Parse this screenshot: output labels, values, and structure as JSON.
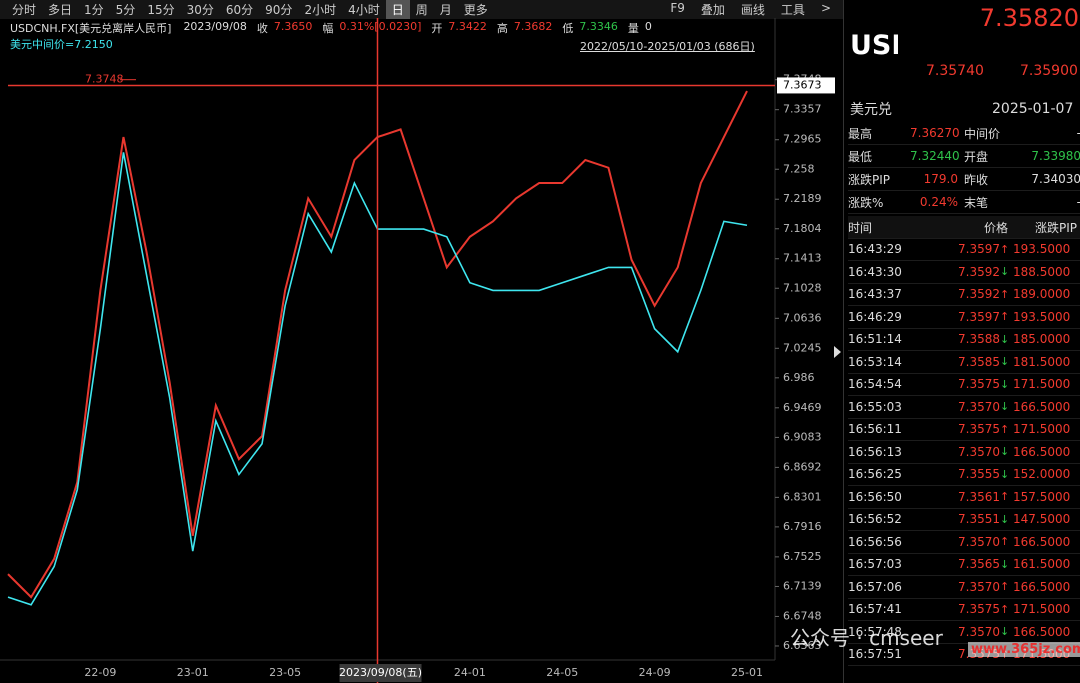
{
  "toolbar": {
    "periods": [
      "分时",
      "多日",
      "1分",
      "5分",
      "15分",
      "30分",
      "60分",
      "90分",
      "2小时",
      "4小时",
      "日",
      "周",
      "月",
      "更多"
    ],
    "selected": 10,
    "tools": [
      "F9",
      "叠加",
      "画线",
      "工具",
      ">"
    ]
  },
  "info": {
    "symbol": "USDCNH.FX[美元兑离岸人民币]",
    "date": "2023/09/08",
    "fields": [
      {
        "label": "收",
        "value": "7.3650",
        "color": "#f23a2f"
      },
      {
        "label": "幅",
        "value": "0.31%[0.0230]",
        "color": "#f23a2f"
      },
      {
        "label": "开",
        "value": "7.3422",
        "color": "#f23a2f"
      },
      {
        "label": "高",
        "value": "7.3682",
        "color": "#f23a2f"
      },
      {
        "label": "低",
        "value": "7.3346",
        "color": "#2fc24a"
      },
      {
        "label": "量",
        "value": "0",
        "color": "#dddddd"
      }
    ],
    "range": "2022/05/10-2025/01/03 (686日)"
  },
  "chart_data": {
    "type": "line",
    "categories": [
      null,
      null,
      null,
      null,
      "22-09",
      null,
      null,
      null,
      "23-01",
      null,
      null,
      null,
      "23-05",
      null,
      null,
      null,
      "2023/09/08(五)",
      null,
      null,
      null,
      "24-01",
      null,
      null,
      null,
      "24-05",
      null,
      null,
      null,
      "24-09",
      null,
      null,
      null,
      "25-01"
    ],
    "series": [
      {
        "color": "#e8382f",
        "values": [
          6.73,
          6.7,
          6.75,
          6.85,
          7.1,
          7.3,
          7.15,
          6.98,
          6.78,
          6.95,
          6.88,
          6.91,
          7.1,
          7.22,
          7.17,
          7.27,
          7.3,
          7.31,
          7.22,
          7.13,
          7.17,
          7.19,
          7.22,
          7.24,
          7.24,
          7.27,
          7.26,
          7.14,
          7.08,
          7.13,
          7.24,
          7.3,
          7.36
        ]
      },
      {
        "name": "美元中间价=7.2150",
        "color": "#3fe6ef",
        "values": [
          6.7,
          6.69,
          6.74,
          6.84,
          7.05,
          7.28,
          7.12,
          6.96,
          6.76,
          6.93,
          6.86,
          6.9,
          7.08,
          7.2,
          7.15,
          7.24,
          7.18,
          7.18,
          7.18,
          7.17,
          7.11,
          7.1,
          7.1,
          7.1,
          7.11,
          7.12,
          7.13,
          7.13,
          7.05,
          7.02,
          7.1,
          7.19,
          7.185
        ]
      }
    ],
    "ylim": [
      6.618,
      7.407
    ],
    "yticks": [
      7.3748,
      7.3357,
      7.2965,
      7.258,
      7.2189,
      7.1804,
      7.1413,
      7.1028,
      7.0636,
      7.0245,
      6.986,
      6.9469,
      6.9083,
      6.8692,
      6.8301,
      6.7916,
      6.7525,
      6.7139,
      6.6748,
      6.6363
    ],
    "high": 7.3748,
    "last_price": 7.3673
  },
  "quote": {
    "last": "7.35820",
    "code": "USD",
    "bid": "7.35740",
    "ask": "7.35900",
    "name": "美元兑",
    "date": "2025-01-07",
    "stats": [
      {
        "label": "最高",
        "value": "7.36270",
        "color": "#f23a2f",
        "label2": "中间价",
        "value2": "-",
        "color2": "#dddddd"
      },
      {
        "label": "最低",
        "value": "7.32440",
        "color": "#2fc24a",
        "label2": "开盘",
        "value2": "7.33980",
        "color2": "#2fc24a"
      },
      {
        "label": "涨跌PIP",
        "value": "179.0",
        "color": "#f23a2f",
        "label2": "昨收",
        "value2": "7.34030",
        "color2": "#dddddd"
      },
      {
        "label": "涨跌%",
        "value": "0.24%",
        "color": "#f23a2f",
        "label2": "末笔",
        "value2": "-",
        "color2": "#dddddd"
      }
    ]
  },
  "ticks": {
    "columns": [
      "时间",
      "价格",
      "涨跌PIP"
    ],
    "rows": [
      {
        "time": "16:43:29",
        "price": "7.3597",
        "arrow": "↑",
        "pip": "193.5000"
      },
      {
        "time": "16:43:30",
        "price": "7.3592",
        "arrow": "↓",
        "pip": "188.5000"
      },
      {
        "time": "16:43:37",
        "price": "7.3592",
        "arrow": "↑",
        "pip": "189.0000"
      },
      {
        "time": "16:46:29",
        "price": "7.3597",
        "arrow": "↑",
        "pip": "193.5000"
      },
      {
        "time": "16:51:14",
        "price": "7.3588",
        "arrow": "↓",
        "pip": "185.0000"
      },
      {
        "time": "16:53:14",
        "price": "7.3585",
        "arrow": "↓",
        "pip": "181.5000"
      },
      {
        "time": "16:54:54",
        "price": "7.3575",
        "arrow": "↓",
        "pip": "171.5000"
      },
      {
        "time": "16:55:03",
        "price": "7.3570",
        "arrow": "↓",
        "pip": "166.5000"
      },
      {
        "time": "16:56:11",
        "price": "7.3575",
        "arrow": "↑",
        "pip": "171.5000"
      },
      {
        "time": "16:56:13",
        "price": "7.3570",
        "arrow": "↓",
        "pip": "166.5000"
      },
      {
        "time": "16:56:25",
        "price": "7.3555",
        "arrow": "↓",
        "pip": "152.0000"
      },
      {
        "time": "16:56:50",
        "price": "7.3561",
        "arrow": "↑",
        "pip": "157.5000"
      },
      {
        "time": "16:56:52",
        "price": "7.3551",
        "arrow": "↓",
        "pip": "147.5000"
      },
      {
        "time": "16:56:56",
        "price": "7.3570",
        "arrow": "↑",
        "pip": "166.5000"
      },
      {
        "time": "16:57:03",
        "price": "7.3565",
        "arrow": "↓",
        "pip": "161.5000"
      },
      {
        "time": "16:57:06",
        "price": "7.3570",
        "arrow": "↑",
        "pip": "166.5000"
      },
      {
        "time": "16:57:41",
        "price": "7.3575",
        "arrow": "↑",
        "pip": "171.5000"
      },
      {
        "time": "16:57:48",
        "price": "7.3570",
        "arrow": "↓",
        "pip": "166.5000"
      },
      {
        "time": "16:57:51",
        "price": "7.3575",
        "arrow": "↑",
        "pip": "171.5000"
      }
    ]
  },
  "watermark": {
    "account": "公众号 · cmseer",
    "site": "www.365jz.com"
  }
}
